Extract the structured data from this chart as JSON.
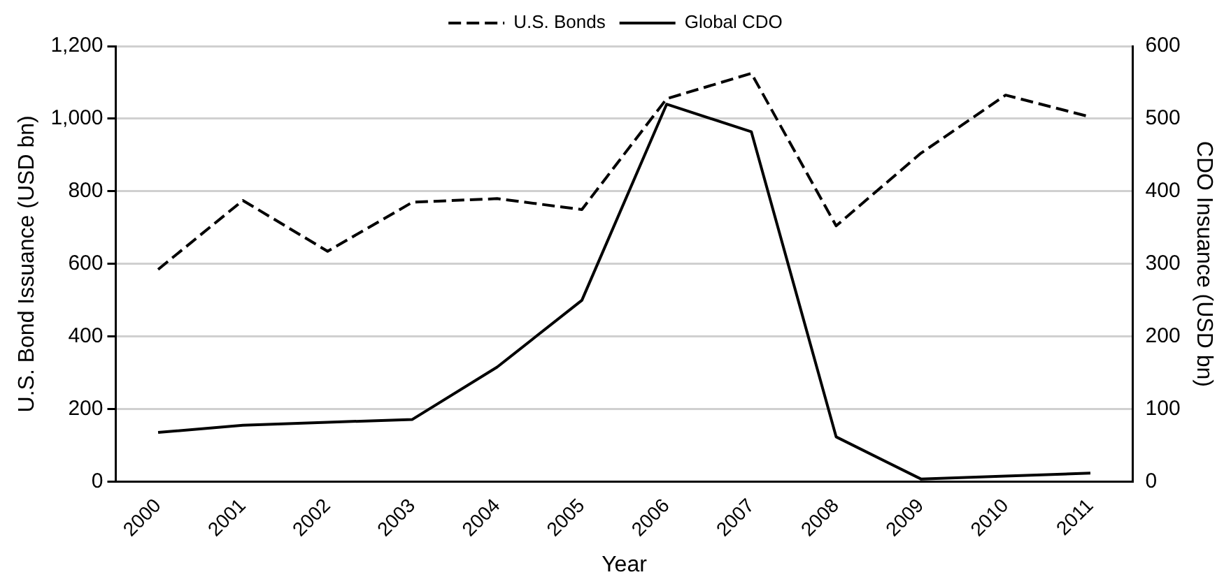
{
  "chart_data": {
    "type": "line",
    "xlabel": "Year",
    "ylabel": "U.S. Bond Issuance (USD bn)",
    "y2label": "CDO Insuance (USD bn)",
    "categories": [
      "2000",
      "2001",
      "2002",
      "2003",
      "2004",
      "2005",
      "2006",
      "2007",
      "2008",
      "2009",
      "2010",
      "2011"
    ],
    "series": [
      {
        "name": "U.S. Bonds",
        "color": "#000000",
        "line_style": "dashed",
        "values": [
          585,
          775,
          635,
          770,
          780,
          750,
          1055,
          1125,
          705,
          905,
          1065,
          1005
        ]
      },
      {
        "name": "Global CDO",
        "color": "#000000",
        "line_style": "solid",
        "axis": "y2",
        "values": [
          68,
          78,
          82,
          86,
          158,
          250,
          520,
          482,
          62,
          4,
          8,
          12
        ]
      }
    ],
    "ylim": [
      0,
      1200
    ],
    "yticks": [
      0,
      200,
      400,
      600,
      800,
      {
        "value": 1000,
        "label": "1,000"
      },
      {
        "value": 1200,
        "label": "1,200"
      }
    ],
    "y2lim": [
      0,
      600
    ],
    "y2ticks": [
      0,
      100,
      200,
      300,
      400,
      500,
      600
    ],
    "grid": "y",
    "legend": "top",
    "marker": "none"
  }
}
